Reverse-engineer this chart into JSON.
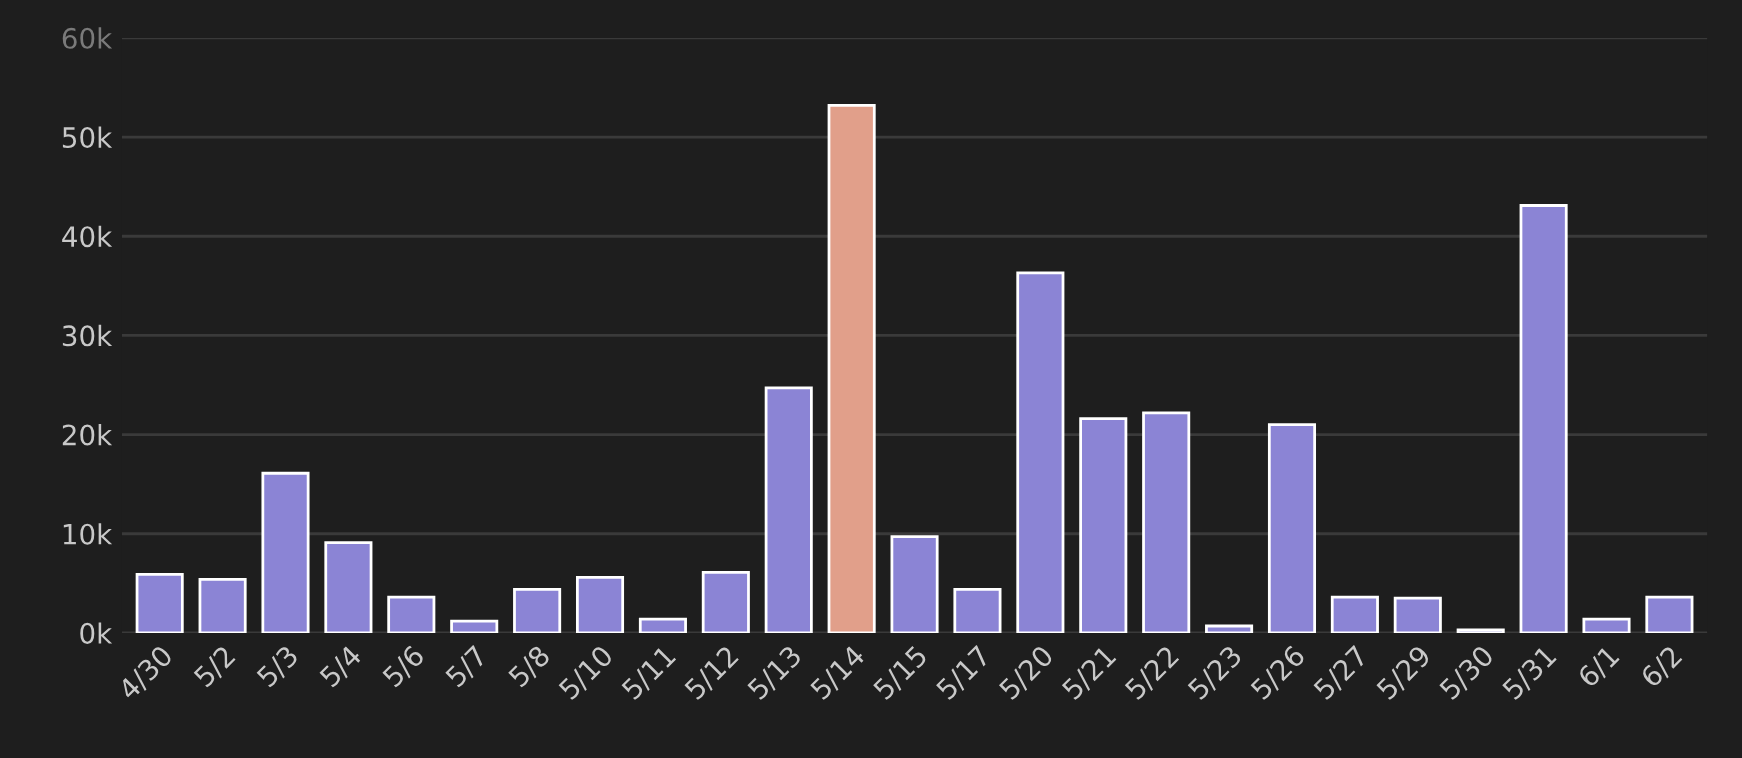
{
  "chart_data": {
    "type": "bar",
    "categories": [
      "4/30",
      "5/2",
      "5/3",
      "5/4",
      "5/6",
      "5/7",
      "5/8",
      "5/10",
      "5/11",
      "5/12",
      "5/13",
      "5/14",
      "5/15",
      "5/17",
      "5/20",
      "5/21",
      "5/22",
      "5/23",
      "5/26",
      "5/27",
      "5/29",
      "5/30",
      "5/31",
      "6/1",
      "6/2"
    ],
    "values": [
      5.9,
      5.4,
      16.1,
      9.1,
      3.6,
      1.2,
      4.4,
      5.6,
      1.4,
      6.1,
      24.7,
      53.2,
      9.7,
      4.4,
      36.3,
      21.6,
      22.2,
      0.7,
      21.0,
      3.6,
      3.5,
      0.3,
      43.1,
      1.4,
      3.6
    ],
    "colors": [
      "#8077e2",
      "#8077e2",
      "#8077e2",
      "#8077e2",
      "#8077e2",
      "#8077e2",
      "#8077e2",
      "#8077e2",
      "#8077e2",
      "#8077e2",
      "#8077e2",
      "#f0977b",
      "#8077e2",
      "#8077e2",
      "#8077e2",
      "#8077e2",
      "#8077e2",
      "#8077e2",
      "#8077e2",
      "#8077e2",
      "#8077e2",
      "#8077e2",
      "#8077e2",
      "#8077e2",
      "#8077e2"
    ],
    "ylim": [
      0,
      60
    ],
    "yticks": [
      {
        "value": 0,
        "label": "0k"
      },
      {
        "value": 10,
        "label": "10k"
      },
      {
        "value": 20,
        "label": "20k"
      },
      {
        "value": 30,
        "label": "30k"
      },
      {
        "value": 40,
        "label": "40k"
      },
      {
        "value": 50,
        "label": "50k"
      },
      {
        "value": 60,
        "label": "60k"
      }
    ],
    "grid": "y"
  }
}
